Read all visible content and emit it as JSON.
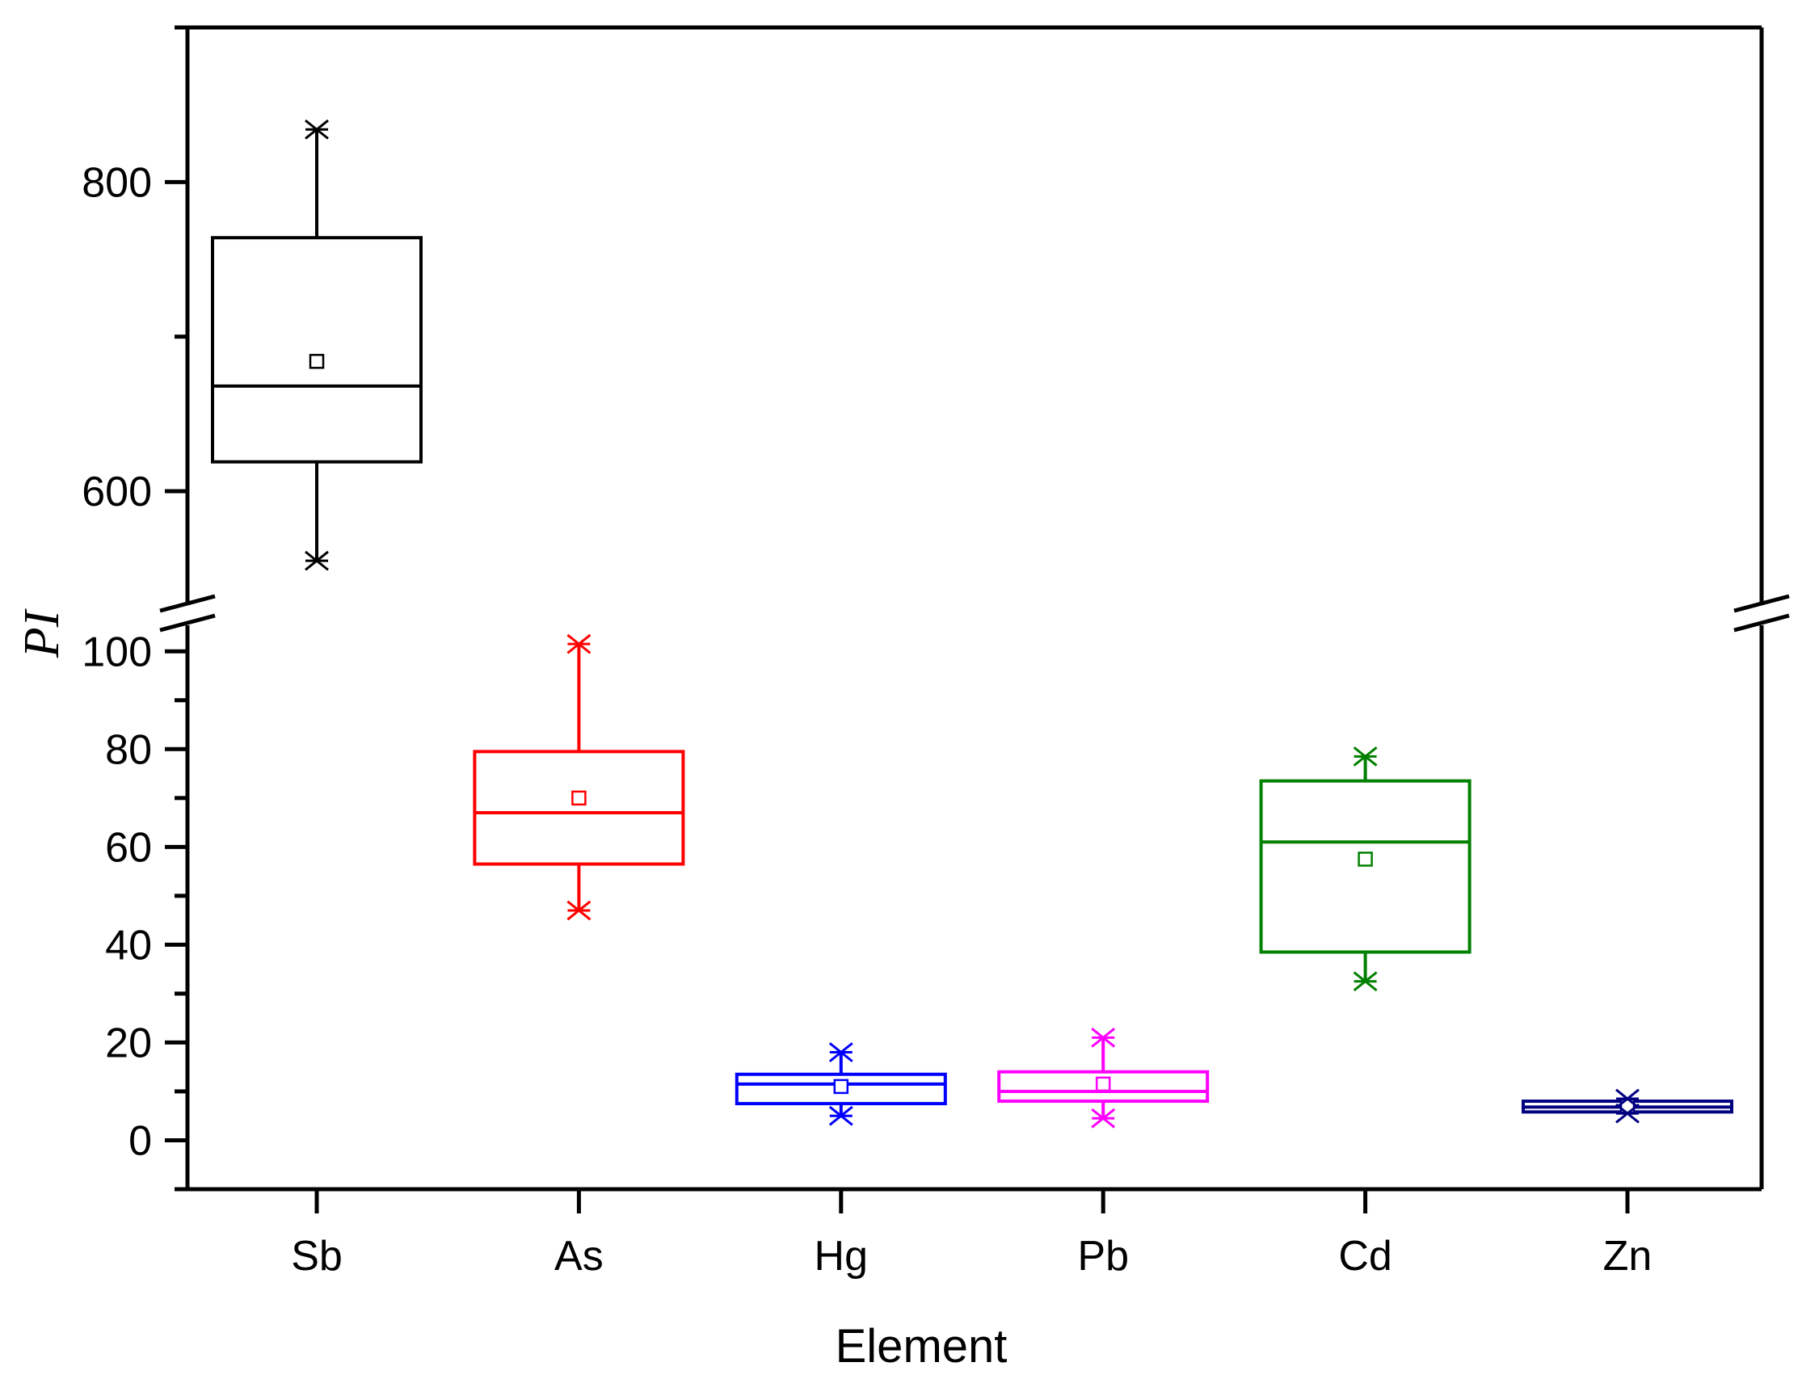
{
  "chart_data": {
    "type": "box",
    "xlabel": "Element",
    "ylabel": "PI",
    "axis_break": {
      "lower_range": [
        -10,
        105
      ],
      "upper_range": [
        530,
        900
      ]
    },
    "y_ticks_lower": [
      0,
      20,
      40,
      60,
      80,
      100
    ],
    "y_ticks_upper": [
      600,
      800
    ],
    "y_tick_labels_lower": [
      "0",
      "20",
      "40",
      "60",
      "80",
      "100"
    ],
    "y_tick_labels_upper": [
      "600",
      "800"
    ],
    "categories": [
      "Sb",
      "As",
      "Hg",
      "Pb",
      "Cd",
      "Zn"
    ],
    "series": [
      {
        "name": "Sb",
        "color": "#000000",
        "min": 555,
        "q1": 619,
        "median": 668,
        "q3": 764,
        "max": 834,
        "mean": 684
      },
      {
        "name": "As",
        "color": "#ff0000",
        "min": 47,
        "q1": 56.5,
        "median": 67,
        "q3": 79.5,
        "max": 101.5,
        "mean": 70
      },
      {
        "name": "Hg",
        "color": "#0000ff",
        "min": 5,
        "q1": 7.5,
        "median": 11.5,
        "q3": 13.5,
        "max": 18,
        "mean": 11
      },
      {
        "name": "Pb",
        "color": "#ff00ff",
        "min": 4.5,
        "q1": 8,
        "median": 10,
        "q3": 14,
        "max": 21,
        "mean": 11.5
      },
      {
        "name": "Cd",
        "color": "#008000",
        "min": 32.5,
        "q1": 38.5,
        "median": 61,
        "q3": 73.5,
        "max": 78.5,
        "mean": 57.5
      },
      {
        "name": "Zn",
        "color": "#000080",
        "min": 5.5,
        "q1": 5.8,
        "median": 6.8,
        "q3": 8.0,
        "max": 8.5,
        "mean": 7
      }
    ]
  }
}
